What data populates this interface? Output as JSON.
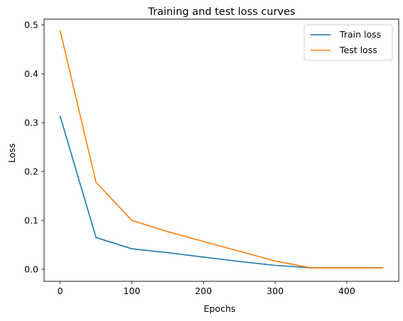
{
  "chart_data": {
    "type": "line",
    "title": "Training and test loss curves",
    "xlabel": "Epochs",
    "ylabel": "Loss",
    "xlim": [
      -22.5,
      472.5
    ],
    "ylim": [
      -0.0246,
      0.5118
    ],
    "xticks": [
      0,
      100,
      200,
      300,
      400
    ],
    "xtick_labels": [
      "0",
      "100",
      "200",
      "300",
      "400"
    ],
    "yticks": [
      0.0,
      0.1,
      0.2,
      0.3,
      0.4,
      0.5
    ],
    "ytick_labels": [
      "0.0",
      "0.1",
      "0.2",
      "0.3",
      "0.4",
      "0.5"
    ],
    "grid": false,
    "legend_position": "top-right",
    "x": [
      0,
      50,
      100,
      150,
      200,
      250,
      300,
      350,
      400,
      450
    ],
    "series": [
      {
        "name": "Train loss",
        "color": "#1f77b4",
        "values": [
          0.313,
          0.065,
          0.042,
          0.034,
          0.025,
          0.016,
          0.008,
          0.003,
          0.003,
          0.003
        ]
      },
      {
        "name": "Test loss",
        "color": "#ff7f0e",
        "values": [
          0.488,
          0.178,
          0.1,
          0.077,
          0.057,
          0.037,
          0.017,
          0.003,
          0.003,
          0.003
        ]
      }
    ]
  }
}
